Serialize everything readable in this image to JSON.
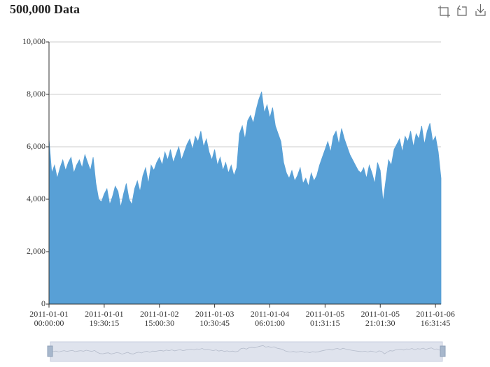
{
  "chart_data": {
    "type": "area",
    "title": "500,000 Data",
    "color": "#58a0d6",
    "grid": true,
    "categories": [
      "2011-01-01 00:00:00",
      null,
      null,
      null,
      null,
      null,
      null,
      null,
      null,
      null,
      null,
      null,
      null,
      null,
      null,
      null,
      null,
      null,
      null,
      null,
      "2011-01-01 19:30:15",
      null,
      null,
      null,
      null,
      null,
      null,
      null,
      null,
      null,
      null,
      null,
      null,
      null,
      null,
      null,
      null,
      null,
      null,
      null,
      "2011-01-02 15:00:30",
      null,
      null,
      null,
      null,
      null,
      null,
      null,
      null,
      null,
      null,
      null,
      null,
      null,
      null,
      null,
      null,
      null,
      null,
      null,
      "2011-01-03 10:30:45",
      null,
      null,
      null,
      null,
      null,
      null,
      null,
      null,
      null,
      null,
      null,
      null,
      null,
      null,
      null,
      null,
      null,
      null,
      null,
      "2011-01-04 06:01:00",
      null,
      null,
      null,
      null,
      null,
      null,
      null,
      null,
      null,
      null,
      null,
      null,
      null,
      null,
      null,
      null,
      null,
      null,
      null,
      "2011-01-05 01:31:15",
      null,
      null,
      null,
      null,
      null,
      null,
      null,
      null,
      null,
      null,
      null,
      null,
      null,
      null,
      null,
      null,
      null,
      null,
      null,
      "2011-01-05 21:01:30",
      null,
      null,
      null,
      null,
      null,
      null,
      null,
      null,
      null,
      null,
      null,
      null,
      null,
      null,
      null,
      null,
      null,
      null,
      null,
      "2011-01-06 16:31:45",
      null,
      null
    ],
    "values": [
      6300,
      5000,
      5300,
      4800,
      5200,
      5500,
      5100,
      5400,
      5600,
      5000,
      5300,
      5500,
      5200,
      5700,
      5400,
      5100,
      5600,
      4600,
      4000,
      3900,
      4200,
      4400,
      3800,
      4100,
      4500,
      4300,
      3700,
      4200,
      4600,
      4000,
      3800,
      4400,
      4700,
      4300,
      4900,
      5200,
      4600,
      5300,
      5100,
      5400,
      5600,
      5300,
      5800,
      5500,
      5900,
      5400,
      5700,
      6000,
      5500,
      5800,
      6100,
      6300,
      5900,
      6400,
      6200,
      6600,
      6000,
      6300,
      5800,
      5500,
      5900,
      5300,
      5600,
      5100,
      5400,
      5000,
      5300,
      4900,
      5200,
      6500,
      6800,
      6300,
      7000,
      7200,
      6900,
      7400,
      7800,
      8100,
      7300,
      7600,
      7100,
      7500,
      6800,
      6500,
      6200,
      5400,
      5000,
      4800,
      5100,
      4700,
      4900,
      5200,
      4600,
      4800,
      4500,
      5000,
      4700,
      4900,
      5300,
      5600,
      5900,
      6200,
      5800,
      6400,
      6600,
      6100,
      6700,
      6300,
      6000,
      5700,
      5500,
      5300,
      5100,
      5000,
      5200,
      4800,
      5300,
      5000,
      4600,
      5400,
      5100,
      3900,
      4700,
      5500,
      5300,
      5900,
      6100,
      6300,
      5800,
      6400,
      6200,
      6600,
      6000,
      6500,
      6300,
      6800,
      6100,
      6600,
      6900,
      6200,
      6400,
      5800,
      4800
    ],
    "ylim": [
      0,
      10000
    ],
    "yticks": [
      0,
      {
        "value": 2000,
        "label": "2,000"
      },
      {
        "value": 4000,
        "label": "4,000"
      },
      {
        "value": 6000,
        "label": "6,000"
      },
      {
        "value": 8000,
        "label": "8,000"
      },
      {
        "value": 10000,
        "label": "10,000"
      }
    ]
  }
}
